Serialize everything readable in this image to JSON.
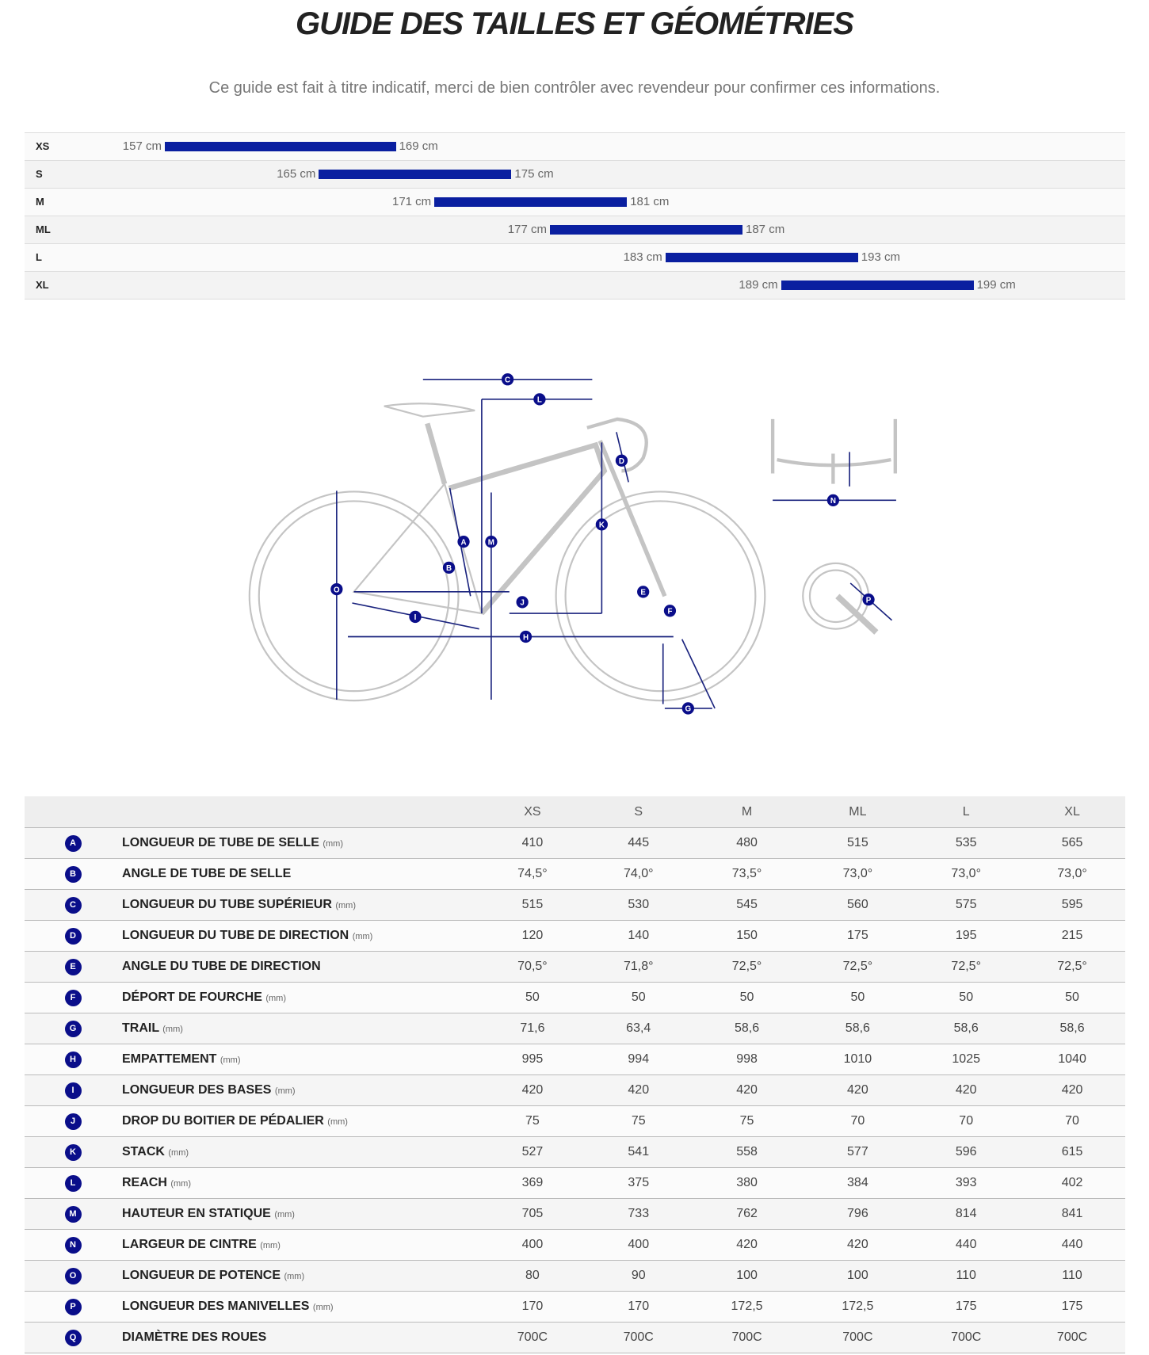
{
  "title": "GUIDE DES TAILLES ET GÉOMÉTRIES",
  "subtitle": "Ce guide est fait à titre indicatif, merci de bien contrôler avec revendeur pour confirmer ces informations.",
  "accent_color": "#0a1fa0",
  "size_ranges": [
    {
      "size": "XS",
      "min": 157,
      "max": 169,
      "min_label": "157 cm",
      "max_label": "169 cm"
    },
    {
      "size": "S",
      "min": 165,
      "max": 175,
      "min_label": "165 cm",
      "max_label": "175 cm"
    },
    {
      "size": "M",
      "min": 171,
      "max": 181,
      "min_label": "171 cm",
      "max_label": "181 cm"
    },
    {
      "size": "ML",
      "min": 177,
      "max": 187,
      "min_label": "177 cm",
      "max_label": "187 cm"
    },
    {
      "size": "L",
      "min": 183,
      "max": 193,
      "min_label": "183 cm",
      "max_label": "193 cm"
    },
    {
      "size": "XL",
      "min": 189,
      "max": 199,
      "min_label": "189 cm",
      "max_label": "199 cm"
    }
  ],
  "diagram_labels": [
    "A",
    "B",
    "C",
    "D",
    "E",
    "F",
    "G",
    "H",
    "I",
    "J",
    "K",
    "L",
    "M",
    "N",
    "O",
    "P",
    "Q"
  ],
  "table": {
    "columns": [
      "XS",
      "S",
      "M",
      "ML",
      "L",
      "XL"
    ],
    "unit": "(mm)",
    "rows": [
      {
        "key": "A",
        "label": "LONGUEUR DE TUBE DE SELLE",
        "unit": "(mm)",
        "values": [
          "410",
          "445",
          "480",
          "515",
          "535",
          "565"
        ]
      },
      {
        "key": "B",
        "label": "ANGLE DE TUBE DE SELLE",
        "unit": "",
        "values": [
          "74,5°",
          "74,0°",
          "73,5°",
          "73,0°",
          "73,0°",
          "73,0°"
        ]
      },
      {
        "key": "C",
        "label": "LONGUEUR DU TUBE SUPÉRIEUR",
        "unit": "(mm)",
        "values": [
          "515",
          "530",
          "545",
          "560",
          "575",
          "595"
        ]
      },
      {
        "key": "D",
        "label": "LONGUEUR DU TUBE DE DIRECTION",
        "unit": "(mm)",
        "values": [
          "120",
          "140",
          "150",
          "175",
          "195",
          "215"
        ]
      },
      {
        "key": "E",
        "label": "ANGLE DU TUBE DE DIRECTION",
        "unit": "",
        "values": [
          "70,5°",
          "71,8°",
          "72,5°",
          "72,5°",
          "72,5°",
          "72,5°"
        ]
      },
      {
        "key": "F",
        "label": "DÉPORT DE FOURCHE",
        "unit": "(mm)",
        "values": [
          "50",
          "50",
          "50",
          "50",
          "50",
          "50"
        ]
      },
      {
        "key": "G",
        "label": "TRAIL",
        "unit": "(mm)",
        "values": [
          "71,6",
          "63,4",
          "58,6",
          "58,6",
          "58,6",
          "58,6"
        ]
      },
      {
        "key": "H",
        "label": "EMPATTEMENT",
        "unit": "(mm)",
        "values": [
          "995",
          "994",
          "998",
          "1010",
          "1025",
          "1040"
        ]
      },
      {
        "key": "I",
        "label": "LONGUEUR DES BASES",
        "unit": "(mm)",
        "values": [
          "420",
          "420",
          "420",
          "420",
          "420",
          "420"
        ]
      },
      {
        "key": "J",
        "label": "DROP DU BOITIER DE PÉDALIER",
        "unit": "(mm)",
        "values": [
          "75",
          "75",
          "75",
          "70",
          "70",
          "70"
        ]
      },
      {
        "key": "K",
        "label": "STACK",
        "unit": "(mm)",
        "values": [
          "527",
          "541",
          "558",
          "577",
          "596",
          "615"
        ]
      },
      {
        "key": "L",
        "label": "REACH",
        "unit": "(mm)",
        "values": [
          "369",
          "375",
          "380",
          "384",
          "393",
          "402"
        ]
      },
      {
        "key": "M",
        "label": "HAUTEUR EN STATIQUE",
        "unit": "(mm)",
        "values": [
          "705",
          "733",
          "762",
          "796",
          "814",
          "841"
        ]
      },
      {
        "key": "N",
        "label": "LARGEUR DE CINTRE",
        "unit": "(mm)",
        "values": [
          "400",
          "400",
          "420",
          "420",
          "440",
          "440"
        ]
      },
      {
        "key": "O",
        "label": "LONGUEUR DE POTENCE",
        "unit": "(mm)",
        "values": [
          "80",
          "90",
          "100",
          "100",
          "110",
          "110"
        ]
      },
      {
        "key": "P",
        "label": "LONGUEUR DES MANIVELLES",
        "unit": "(mm)",
        "values": [
          "170",
          "170",
          "172,5",
          "172,5",
          "175",
          "175"
        ]
      },
      {
        "key": "Q",
        "label": "DIAMÈTRE DES ROUES",
        "unit": "",
        "values": [
          "700C",
          "700C",
          "700C",
          "700C",
          "700C",
          "700C"
        ]
      }
    ]
  }
}
